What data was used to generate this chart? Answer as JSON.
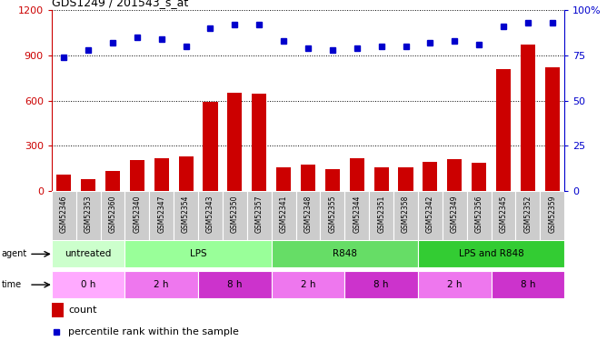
{
  "title": "GDS1249 / 201543_s_at",
  "samples": [
    "GSM52346",
    "GSM52353",
    "GSM52360",
    "GSM52340",
    "GSM52347",
    "GSM52354",
    "GSM52343",
    "GSM52350",
    "GSM52357",
    "GSM52341",
    "GSM52348",
    "GSM52355",
    "GSM52344",
    "GSM52351",
    "GSM52358",
    "GSM52342",
    "GSM52349",
    "GSM52356",
    "GSM52345",
    "GSM52352",
    "GSM52359"
  ],
  "counts": [
    110,
    80,
    130,
    205,
    215,
    230,
    590,
    650,
    645,
    155,
    175,
    145,
    215,
    160,
    155,
    195,
    210,
    185,
    810,
    975,
    820
  ],
  "percentiles": [
    74,
    78,
    82,
    85,
    84,
    80,
    90,
    92,
    92,
    83,
    79,
    78,
    79,
    80,
    80,
    82,
    83,
    81,
    91,
    93,
    93
  ],
  "bar_color": "#cc0000",
  "dot_color": "#0000cc",
  "agent_groups": [
    {
      "label": "untreated",
      "start": 0,
      "end": 3,
      "color": "#ccffcc"
    },
    {
      "label": "LPS",
      "start": 3,
      "end": 9,
      "color": "#99ff99"
    },
    {
      "label": "R848",
      "start": 9,
      "end": 15,
      "color": "#66dd66"
    },
    {
      "label": "LPS and R848",
      "start": 15,
      "end": 21,
      "color": "#33cc33"
    }
  ],
  "time_groups": [
    {
      "label": "0 h",
      "start": 0,
      "end": 3,
      "color": "#ffaaff"
    },
    {
      "label": "2 h",
      "start": 3,
      "end": 6,
      "color": "#ee77ee"
    },
    {
      "label": "8 h",
      "start": 6,
      "end": 9,
      "color": "#cc33cc"
    },
    {
      "label": "2 h",
      "start": 9,
      "end": 12,
      "color": "#ee77ee"
    },
    {
      "label": "8 h",
      "start": 12,
      "end": 15,
      "color": "#cc33cc"
    },
    {
      "label": "2 h",
      "start": 15,
      "end": 18,
      "color": "#ee77ee"
    },
    {
      "label": "8 h",
      "start": 18,
      "end": 21,
      "color": "#cc33cc"
    }
  ],
  "ylim_left": [
    0,
    1200
  ],
  "ylim_right": [
    0,
    100
  ],
  "yticks_left": [
    0,
    300,
    600,
    900,
    1200
  ],
  "yticks_right": [
    0,
    25,
    50,
    75,
    100
  ],
  "background_color": "#ffffff",
  "left_axis_color": "#cc0000",
  "right_axis_color": "#0000cc",
  "sample_bg_color": "#cccccc",
  "sample_bg_edge": "#ffffff"
}
